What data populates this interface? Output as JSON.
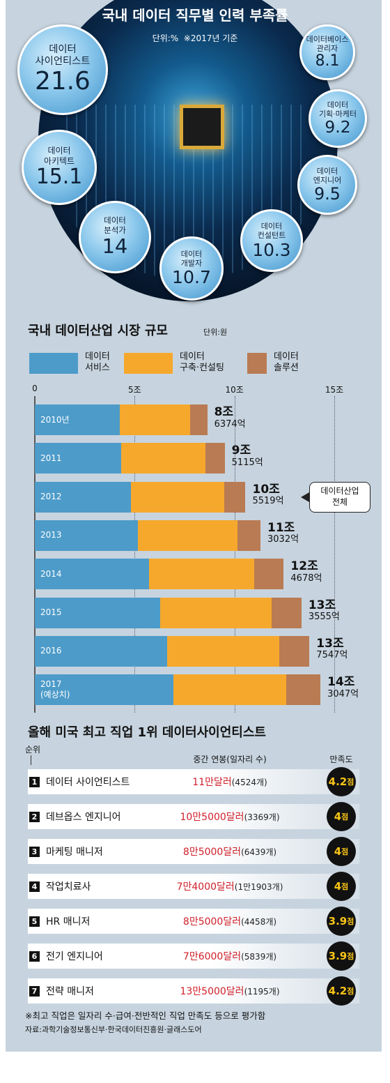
{
  "chart_data": [
    {
      "type": "bubble",
      "title": "국내 데이터 직무별 인력 부족률",
      "subtitle": "단위:%  ※2017년 기준",
      "categories": [
        "데이터\n사이언티스트",
        "데이터\n아키텍트",
        "데이터\n분석가",
        "데이터\n개발자",
        "데이터\n컨설턴트",
        "데이터\n엔지니어",
        "데이터\n기획·마케터",
        "데이터베이스\n관리자"
      ],
      "values": [
        21.6,
        15.1,
        14,
        10.7,
        10.3,
        9.5,
        9.2,
        8.1
      ],
      "color": "#3f93cc"
    },
    {
      "type": "bar",
      "stacked": true,
      "orientation": "horizontal",
      "title": "국내 데이터산업 시장 규모",
      "subtitle": "단위:원",
      "categories": [
        "2010년",
        "2011",
        "2012",
        "2013",
        "2014",
        "2015",
        "2016",
        "2017\n(예상치)"
      ],
      "series": [
        {
          "name": "데이터\n서비스",
          "color": "#4d9bc9",
          "values": [
            4.25,
            4.32,
            4.81,
            5.16,
            5.71,
            6.27,
            6.62,
            6.93
          ]
        },
        {
          "name": "데이터\n구축·컨설팅",
          "color": "#f6a82c",
          "values": [
            3.52,
            4.22,
            4.67,
            4.98,
            5.27,
            5.58,
            5.64,
            5.68
          ]
        },
        {
          "name": "데이터\n솔루션",
          "color": "#b97b53",
          "values": [
            0.87,
            0.97,
            1.07,
            1.16,
            1.49,
            1.51,
            1.49,
            1.69
          ]
        }
      ],
      "totals": [
        8.6374,
        9.5115,
        10.5519,
        11.3032,
        12.4678,
        13.3555,
        13.7547,
        14.3047
      ],
      "total_labels": [
        "8조\n6374억",
        "9조\n5115억",
        "10조\n5519억",
        "11조\n3032억",
        "12조\n4678억",
        "13조\n3555억",
        "13조\n7547억",
        "14조\n3047억"
      ],
      "annotation": "데이터산업\n전체",
      "xlim": [
        0,
        16.5
      ],
      "xticks": [
        0,
        {
          "value": 5,
          "label": "5조"
        },
        {
          "value": 10,
          "label": "10조"
        },
        {
          "value": 15,
          "label": "15조"
        }
      ],
      "grid": true
    }
  ],
  "table": {
    "title": "올해 미국 최고 직업 1위 데이터사이언티스트",
    "header": {
      "rank": "순위",
      "salary": "중간 연봉(일자리 수)",
      "score": "만족도"
    },
    "rows": [
      {
        "rank": "1",
        "job": "데이터 사이언티스트",
        "salary": "11만달러",
        "count": "(4524개)",
        "score": "4.2",
        "unit": "점"
      },
      {
        "rank": "2",
        "job": "데브옵스 엔지니어",
        "salary": "10만5000달러",
        "count": "(3369개)",
        "score": "4",
        "unit": "점"
      },
      {
        "rank": "3",
        "job": "마케팅 매니저",
        "salary": "8만5000달러",
        "count": "(6439개)",
        "score": "4",
        "unit": "점"
      },
      {
        "rank": "4",
        "job": "작업치료사",
        "salary": "7만4000달러",
        "count": "(1만1903개)",
        "score": "4",
        "unit": "점"
      },
      {
        "rank": "5",
        "job": "HR 매니저",
        "salary": "8만5000달러",
        "count": "(4458개)",
        "score": "3.9",
        "unit": "점"
      },
      {
        "rank": "6",
        "job": "전기 엔지니어",
        "salary": "7만6000달러",
        "count": "(5839개)",
        "score": "3.9",
        "unit": "점"
      },
      {
        "rank": "7",
        "job": "전략 매니저",
        "salary": "13만5000달러",
        "count": "(1195개)",
        "score": "4.2",
        "unit": "점"
      }
    ]
  },
  "footnotes": [
    "※최고 직업은 일자리 수·급여·전반적인 직업 만족도 등으로 평가함",
    "자료:과학기술정보통신부·한국데이터진흥원·글래스도어"
  ]
}
